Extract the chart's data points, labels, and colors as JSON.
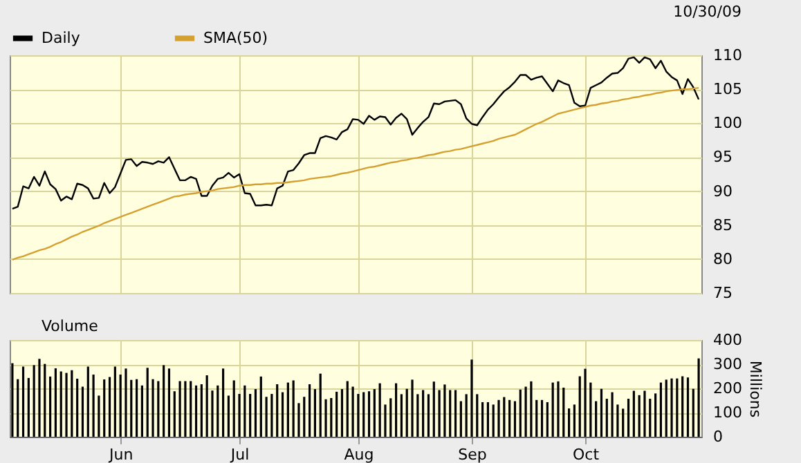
{
  "chart_data": [
    {
      "type": "line",
      "annotations": [
        "10/30/09"
      ],
      "legend": "top left",
      "grid": true,
      "tick_labels": "y",
      "ylim": [
        75,
        110
      ],
      "yticks": [
        75,
        80,
        85,
        90,
        95,
        100,
        105,
        110
      ],
      "categories": [
        null,
        null,
        null,
        null,
        null,
        null,
        null,
        null,
        null,
        null,
        null,
        null,
        null,
        null,
        null,
        null,
        null,
        null,
        null,
        null,
        null,
        null,
        null,
        null,
        null,
        null,
        null,
        null,
        null,
        null,
        null,
        null,
        null,
        null,
        null,
        null,
        null,
        null,
        null,
        null,
        null,
        null,
        null,
        null,
        null,
        null,
        null,
        null,
        null,
        null,
        null,
        null,
        null,
        null,
        null,
        null,
        null,
        null,
        null,
        null,
        null,
        null,
        null,
        null,
        null,
        null,
        null,
        null,
        null,
        null,
        null,
        null,
        null,
        null,
        null,
        null,
        null,
        null,
        null,
        null,
        null,
        null,
        null,
        null,
        null,
        null,
        null,
        null,
        null,
        null,
        null,
        null,
        null,
        null,
        null,
        null,
        null,
        null,
        null,
        null,
        null,
        null,
        null,
        null,
        null,
        null,
        null,
        null,
        null,
        null,
        null,
        null,
        null,
        null,
        null,
        null,
        null,
        null,
        null,
        null,
        null,
        null,
        null,
        null,
        null,
        null,
        null,
        null
      ],
      "series": [
        {
          "name": "Daily",
          "color": "#000000",
          "values": [
            87.4,
            87.7,
            90.7,
            90.4,
            92.1,
            90.8,
            92.9,
            91.0,
            90.3,
            88.6,
            89.2,
            88.8,
            91.1,
            90.9,
            90.4,
            88.9,
            89.0,
            91.2,
            89.7,
            90.6,
            92.6,
            94.6,
            94.7,
            93.7,
            94.3,
            94.2,
            94.0,
            94.4,
            94.2,
            95.0,
            93.3,
            91.6,
            91.6,
            92.1,
            91.8,
            89.3,
            89.3,
            90.8,
            91.8,
            92.0,
            92.7,
            92.0,
            92.5,
            89.7,
            89.6,
            87.9,
            87.9,
            88.0,
            87.9,
            90.4,
            90.8,
            92.9,
            93.1,
            94.1,
            95.3,
            95.6,
            95.6,
            97.8,
            98.1,
            97.9,
            97.6,
            98.7,
            99.1,
            100.6,
            100.5,
            99.9,
            101.1,
            100.5,
            101.0,
            100.9,
            99.8,
            100.8,
            101.4,
            100.6,
            98.3,
            99.3,
            100.2,
            100.9,
            102.9,
            102.8,
            103.2,
            103.3,
            103.4,
            102.8,
            100.7,
            99.9,
            99.7,
            100.9,
            102.0,
            102.8,
            103.8,
            104.7,
            105.3,
            106.1,
            107.1,
            107.1,
            106.4,
            106.7,
            106.9,
            105.8,
            104.7,
            106.3,
            105.9,
            105.6,
            103.0,
            102.5,
            102.6,
            105.2,
            105.6,
            106.0,
            106.7,
            107.3,
            107.4,
            108.1,
            109.5,
            109.7,
            108.9,
            109.7,
            109.4,
            108.1,
            109.2,
            107.6,
            106.8,
            106.3,
            104.3,
            106.5,
            105.3,
            103.5
          ]
        },
        {
          "name": "SMA(50)",
          "color": "#d4a030",
          "values": [
            79.9,
            80.2,
            80.4,
            80.7,
            81.0,
            81.3,
            81.5,
            81.8,
            82.2,
            82.5,
            82.9,
            83.3,
            83.6,
            84.0,
            84.3,
            84.6,
            84.9,
            85.3,
            85.6,
            85.9,
            86.2,
            86.5,
            86.8,
            87.1,
            87.4,
            87.7,
            88.0,
            88.3,
            88.6,
            88.9,
            89.2,
            89.3,
            89.5,
            89.6,
            89.7,
            89.9,
            90.0,
            90.1,
            90.3,
            90.4,
            90.5,
            90.6,
            90.8,
            90.9,
            90.9,
            91.0,
            91.0,
            91.1,
            91.1,
            91.2,
            91.2,
            91.3,
            91.4,
            91.5,
            91.6,
            91.8,
            91.9,
            92.0,
            92.1,
            92.2,
            92.4,
            92.6,
            92.7,
            92.9,
            93.1,
            93.3,
            93.5,
            93.6,
            93.8,
            94.0,
            94.2,
            94.3,
            94.5,
            94.6,
            94.8,
            94.9,
            95.1,
            95.3,
            95.4,
            95.6,
            95.8,
            95.9,
            96.1,
            96.2,
            96.4,
            96.6,
            96.8,
            97.0,
            97.2,
            97.4,
            97.7,
            97.9,
            98.1,
            98.3,
            98.7,
            99.1,
            99.5,
            99.9,
            100.2,
            100.6,
            101.0,
            101.4,
            101.6,
            101.8,
            102.0,
            102.2,
            102.4,
            102.6,
            102.7,
            102.9,
            103.0,
            103.2,
            103.3,
            103.5,
            103.6,
            103.8,
            103.9,
            104.1,
            104.2,
            104.4,
            104.5,
            104.7,
            104.8,
            104.9,
            105.0,
            105.0,
            105.1,
            105.2
          ]
        }
      ]
    },
    {
      "type": "bar",
      "ylabel": "Millions",
      "legend": "top left",
      "grid": true,
      "ylim": [
        0,
        400
      ],
      "yticks": [
        0,
        100,
        200,
        300,
        400
      ],
      "categories": [
        null,
        null,
        null,
        null,
        null,
        null,
        null,
        null,
        null,
        null,
        null,
        null,
        null,
        null,
        null,
        null,
        null,
        null,
        null,
        null,
        "Jun",
        null,
        null,
        null,
        null,
        null,
        null,
        null,
        null,
        null,
        null,
        null,
        null,
        null,
        null,
        null,
        null,
        null,
        null,
        null,
        null,
        null,
        "Jul",
        null,
        null,
        null,
        null,
        null,
        null,
        null,
        null,
        null,
        null,
        null,
        null,
        null,
        null,
        null,
        null,
        null,
        null,
        null,
        null,
        null,
        "Aug",
        null,
        null,
        null,
        null,
        null,
        null,
        null,
        null,
        null,
        null,
        null,
        null,
        null,
        null,
        null,
        null,
        null,
        null,
        null,
        null,
        "Sep",
        null,
        null,
        null,
        null,
        null,
        null,
        null,
        null,
        null,
        null,
        null,
        null,
        null,
        null,
        null,
        null,
        null,
        null,
        null,
        null,
        "Oct",
        null,
        null,
        null,
        null,
        null,
        null,
        null,
        null,
        null,
        null,
        null,
        null,
        null,
        null,
        null,
        null,
        null,
        null,
        null,
        null,
        null
      ],
      "series": [
        {
          "name": "Volume",
          "color": "#000000",
          "values": [
            304,
            238,
            290,
            243,
            296,
            322,
            301,
            249,
            283,
            270,
            264,
            275,
            240,
            207,
            290,
            257,
            170,
            237,
            247,
            290,
            257,
            282,
            235,
            238,
            212,
            285,
            238,
            230,
            296,
            282,
            188,
            230,
            230,
            230,
            212,
            217,
            254,
            191,
            212,
            282,
            170,
            233,
            177,
            212,
            177,
            197,
            249,
            165,
            177,
            217,
            184,
            224,
            233,
            139,
            165,
            217,
            197,
            261,
            155,
            160,
            186,
            197,
            230,
            207,
            177,
            184,
            188,
            197,
            221,
            133,
            159,
            221,
            176,
            198,
            236,
            176,
            193,
            176,
            228,
            193,
            216,
            193,
            193,
            147,
            176,
            319,
            176,
            143,
            143,
            133,
            152,
            164,
            152,
            147,
            195,
            207,
            229,
            152,
            152,
            143,
            224,
            229,
            203,
            117,
            133,
            250,
            281,
            224,
            147,
            198,
            157,
            184,
            133,
            116,
            157,
            190,
            172,
            190,
            157,
            179,
            224,
            236,
            241,
            241,
            250,
            245,
            198,
            324
          ]
        }
      ]
    }
  ]
}
